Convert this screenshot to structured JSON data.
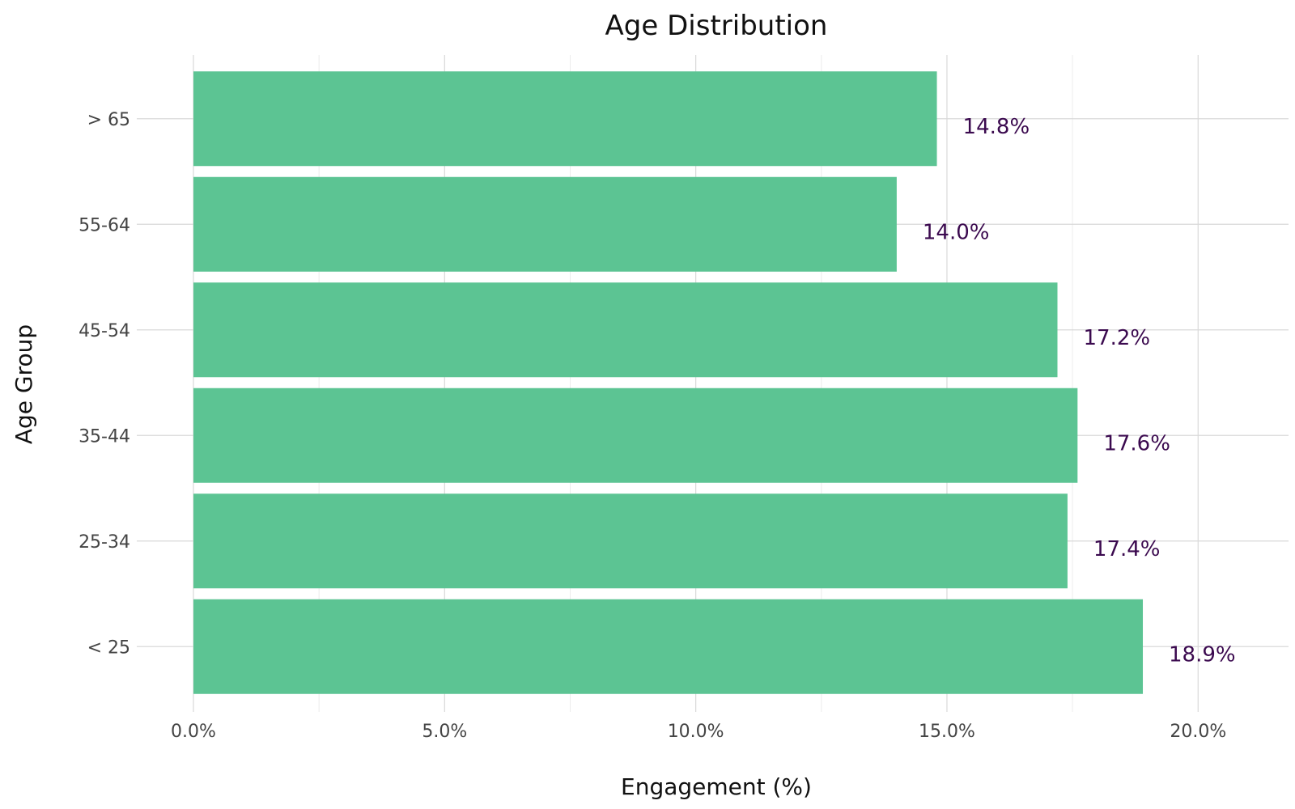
{
  "chart_data": {
    "type": "bar",
    "orientation": "horizontal",
    "title": "Age Distribution",
    "xlabel": "Engagement (%)",
    "ylabel": "Age Group",
    "categories": [
      "> 65",
      "55-64",
      "45-54",
      "35-44",
      "25-34",
      "< 25"
    ],
    "values": [
      14.8,
      14.0,
      17.2,
      17.6,
      17.4,
      18.9
    ],
    "data_labels": [
      "14.8%",
      "14.0%",
      "17.2%",
      "17.6%",
      "17.4%",
      "18.9%"
    ],
    "xlim": [
      0,
      21.8
    ],
    "x_ticks": [
      0,
      5,
      10,
      15,
      20
    ],
    "x_tick_labels": [
      "0.0%",
      "5.0%",
      "10.0%",
      "15.0%",
      "20.0%"
    ],
    "grid": true,
    "colors": {
      "bar": "#5cc493",
      "data_label": "#3b0a4f",
      "grid_major": "#d9d9d9",
      "grid_minor": "#ececec"
    }
  }
}
